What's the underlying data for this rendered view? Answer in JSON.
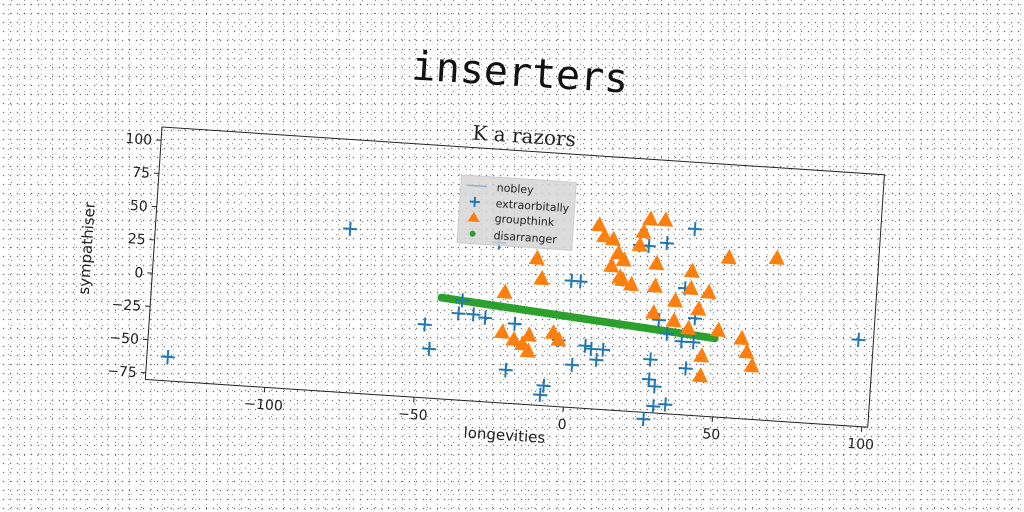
{
  "title": "inserters",
  "chart_data": {
    "type": "scatter",
    "subtitle": "K a razors",
    "xlabel": "longevities",
    "ylabel": "sympathiser",
    "xlim": [
      -140,
      102
    ],
    "ylim": [
      -80,
      110
    ],
    "xticks": [
      -100,
      -50,
      0,
      50,
      100
    ],
    "xtick_labels": [
      "−100",
      "−50",
      "0",
      "50",
      "100"
    ],
    "yticks": [
      100,
      75,
      50,
      25,
      0,
      -25,
      -50,
      -75
    ],
    "ytick_labels": [
      "100",
      "75",
      "50",
      "25",
      "0",
      "−25",
      "−50",
      "−75"
    ],
    "legend_position": "upper-center",
    "grid": false,
    "series": [
      {
        "name": "nobley",
        "marker": "line",
        "color": "#1f77b4",
        "points": []
      },
      {
        "name": "extraorbitally",
        "marker": "plus",
        "color": "#1f77b4",
        "points": [
          [
            -133,
            -62
          ],
          [
            -75,
            43
          ],
          [
            -48,
            -25
          ],
          [
            -46,
            -43
          ],
          [
            -36,
            -5
          ],
          [
            -37,
            -15
          ],
          [
            -32,
            -15
          ],
          [
            -28,
            -17
          ],
          [
            -25,
            40
          ],
          [
            -20,
            -55
          ],
          [
            -18,
            -20
          ],
          [
            -8,
            -72
          ],
          [
            -7,
            -65
          ],
          [
            -3,
            -30
          ],
          [
            0,
            15
          ],
          [
            2,
            -48
          ],
          [
            3,
            15
          ],
          [
            6,
            -33
          ],
          [
            8,
            -35
          ],
          [
            10,
            -43
          ],
          [
            12,
            -35
          ],
          [
            22,
            45
          ],
          [
            25,
            45
          ],
          [
            27,
            -85
          ],
          [
            28,
            -40
          ],
          [
            28,
            -55
          ],
          [
            30,
            -60
          ],
          [
            30,
            -10
          ],
          [
            30,
            -75
          ],
          [
            31,
            48
          ],
          [
            33,
            -20
          ],
          [
            34,
            -73
          ],
          [
            38,
            -25
          ],
          [
            38,
            15
          ],
          [
            42,
            -7
          ],
          [
            42,
            -25
          ],
          [
            40,
            -45
          ],
          [
            40,
            60
          ],
          [
            97,
            -15
          ]
        ]
      },
      {
        "name": "groupthink",
        "marker": "triangle",
        "color": "#ff7f0e",
        "points": [
          [
            -22,
            3
          ],
          [
            -22,
            -27
          ],
          [
            -18,
            -32
          ],
          [
            -15,
            -35
          ],
          [
            -13,
            -28
          ],
          [
            -13,
            -40
          ],
          [
            -12,
            30
          ],
          [
            -10,
            15
          ],
          [
            -5,
            -25
          ],
          [
            -3,
            -30
          ],
          [
            8,
            58
          ],
          [
            10,
            50
          ],
          [
            13,
            48
          ],
          [
            13,
            28
          ],
          [
            15,
            38
          ],
          [
            16,
            20
          ],
          [
            17,
            33
          ],
          [
            17,
            18
          ],
          [
            20,
            15
          ],
          [
            22,
            45
          ],
          [
            23,
            55
          ],
          [
            25,
            65
          ],
          [
            28,
            32
          ],
          [
            28,
            -5
          ],
          [
            28,
            15
          ],
          [
            30,
            65
          ],
          [
            35,
            5
          ],
          [
            35,
            -10
          ],
          [
            40,
            -15
          ],
          [
            40,
            15
          ],
          [
            40,
            28
          ],
          [
            43,
            0
          ],
          [
            45,
            -35
          ],
          [
            45,
            -50
          ],
          [
            46,
            13
          ],
          [
            50,
            -15
          ],
          [
            52,
            40
          ],
          [
            58,
            -20
          ],
          [
            60,
            -30
          ],
          [
            62,
            -40
          ],
          [
            68,
            42
          ]
        ]
      },
      {
        "name": "disarranger",
        "marker": "dot",
        "color": "#2ca02c",
        "x_range": [
          -43,
          49
        ],
        "y_range": [
          -4,
          -21
        ]
      }
    ]
  }
}
